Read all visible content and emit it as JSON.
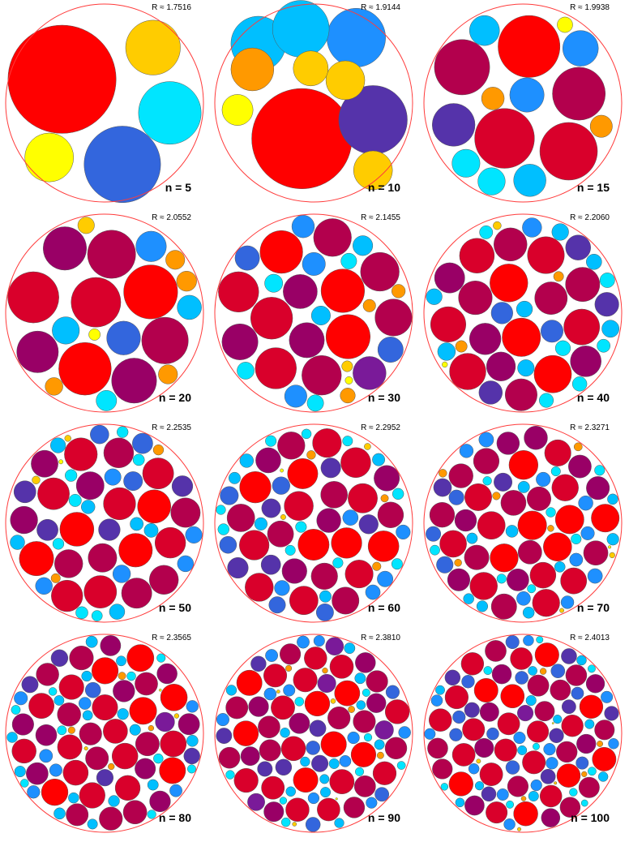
{
  "panels": [
    {
      "n_label": "n = 5",
      "r_label": "R ≈ 1.7516"
    },
    {
      "n_label": "n = 10",
      "r_label": "R ≈ 1.9144"
    },
    {
      "n_label": "n = 15",
      "r_label": "R ≈ 1.9938"
    },
    {
      "n_label": "n = 20",
      "r_label": "R ≈ 2.0552"
    },
    {
      "n_label": "n = 30",
      "r_label": "R ≈ 2.1455"
    },
    {
      "n_label": "n = 40",
      "r_label": "R ≈ 2.2060"
    },
    {
      "n_label": "n = 50",
      "r_label": "R ≈ 2.2535"
    },
    {
      "n_label": "n = 60",
      "r_label": "R ≈ 2.2952"
    },
    {
      "n_label": "n = 70",
      "r_label": "R ≈ 2.3271"
    },
    {
      "n_label": "n = 80",
      "r_label": "R ≈ 2.3565"
    },
    {
      "n_label": "n = 90",
      "r_label": "R ≈ 2.3810"
    },
    {
      "n_label": "n = 100",
      "r_label": "R ≈ 2.4013"
    }
  ],
  "colors": {
    "boundary": "#ff3b3b",
    "palette": [
      "#ffff00",
      "#ffcc00",
      "#ff9900",
      "#00e5ff",
      "#00bfff",
      "#1e90ff",
      "#3366dd",
      "#5533aa",
      "#7a1a99",
      "#990066",
      "#b3004d",
      "#d9002b",
      "#ff0000"
    ]
  }
}
